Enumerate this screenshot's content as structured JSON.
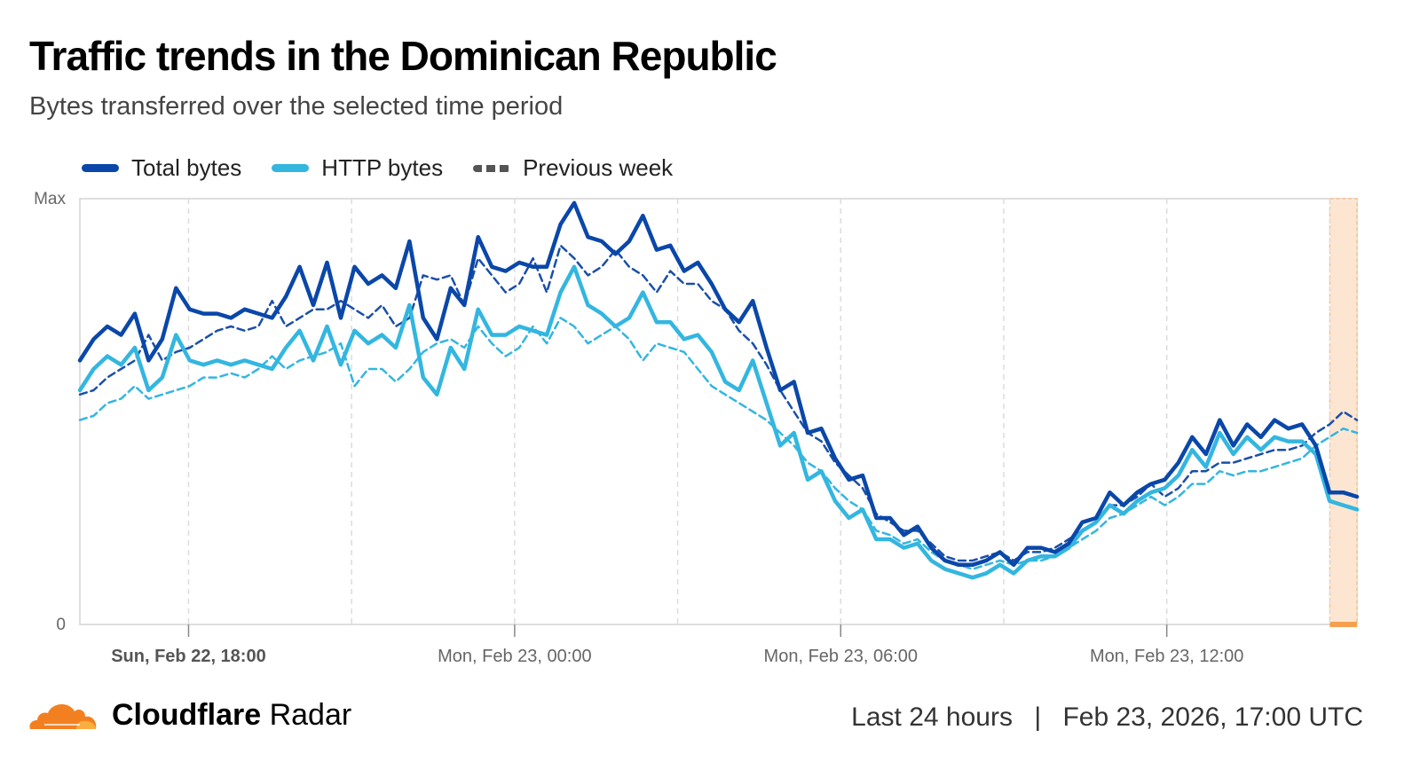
{
  "header": {
    "title": "Traffic trends in the Dominican Republic",
    "subtitle": "Bytes transferred over the selected time period"
  },
  "legend": [
    {
      "label": "Total bytes",
      "color": "#0a47a9"
    },
    {
      "label": "HTTP bytes",
      "color": "#33b6e0"
    },
    {
      "label": "Previous week",
      "color": "#555555"
    }
  ],
  "footer": {
    "brand_bold": "Cloudflare",
    "brand_rest": " Radar",
    "range": "Last 24 hours",
    "separator": "|",
    "timestamp": "Feb 23, 2026, 17:00 UTC"
  },
  "chart_data": {
    "type": "line",
    "title": "Traffic trends in the Dominican Republic",
    "ylabel": "",
    "ylim": [
      0,
      1
    ],
    "y_tick_labels": [
      "0",
      "Max"
    ],
    "x_tick_labels": [
      "Sun, Feb 22, 18:00",
      "Mon, Feb 23, 00:00",
      "Mon, Feb 23, 06:00",
      "Mon, Feb 23, 12:00"
    ],
    "x_tick_hours": [
      0,
      6,
      12,
      18
    ],
    "x_start_hours": -2,
    "x_end_hours": 21.5,
    "grid_hours": [
      0,
      3,
      6,
      9,
      12,
      15,
      18,
      21
    ],
    "highlight_region_hours": [
      21.0,
      21.5
    ],
    "series": [
      {
        "name": "Total bytes",
        "color": "#0a47a9",
        "style": "solid",
        "values": [
          0.62,
          0.67,
          0.7,
          0.68,
          0.73,
          0.62,
          0.67,
          0.79,
          0.74,
          0.73,
          0.73,
          0.72,
          0.74,
          0.73,
          0.72,
          0.77,
          0.84,
          0.75,
          0.85,
          0.72,
          0.84,
          0.8,
          0.82,
          0.79,
          0.9,
          0.72,
          0.67,
          0.79,
          0.75,
          0.91,
          0.84,
          0.83,
          0.85,
          0.84,
          0.84,
          0.94,
          0.99,
          0.91,
          0.9,
          0.87,
          0.9,
          0.96,
          0.88,
          0.89,
          0.83,
          0.85,
          0.8,
          0.74,
          0.71,
          0.76,
          0.65,
          0.55,
          0.57,
          0.45,
          0.46,
          0.39,
          0.34,
          0.35,
          0.25,
          0.25,
          0.21,
          0.23,
          0.18,
          0.15,
          0.14,
          0.14,
          0.15,
          0.17,
          0.14,
          0.18,
          0.18,
          0.17,
          0.19,
          0.24,
          0.25,
          0.31,
          0.28,
          0.31,
          0.33,
          0.34,
          0.38,
          0.44,
          0.4,
          0.48,
          0.42,
          0.47,
          0.44,
          0.48,
          0.46,
          0.47,
          0.42,
          0.31,
          0.31,
          0.3
        ]
      },
      {
        "name": "HTTP bytes",
        "color": "#33b6e0",
        "style": "solid",
        "values": [
          0.55,
          0.6,
          0.63,
          0.61,
          0.65,
          0.55,
          0.58,
          0.68,
          0.62,
          0.61,
          0.62,
          0.61,
          0.62,
          0.61,
          0.6,
          0.65,
          0.69,
          0.62,
          0.7,
          0.61,
          0.69,
          0.66,
          0.68,
          0.65,
          0.75,
          0.58,
          0.54,
          0.65,
          0.6,
          0.74,
          0.68,
          0.68,
          0.7,
          0.69,
          0.68,
          0.78,
          0.84,
          0.75,
          0.73,
          0.7,
          0.72,
          0.78,
          0.71,
          0.71,
          0.67,
          0.68,
          0.64,
          0.57,
          0.55,
          0.62,
          0.52,
          0.42,
          0.45,
          0.34,
          0.36,
          0.29,
          0.25,
          0.27,
          0.2,
          0.2,
          0.18,
          0.19,
          0.15,
          0.13,
          0.12,
          0.11,
          0.12,
          0.14,
          0.12,
          0.15,
          0.16,
          0.16,
          0.18,
          0.22,
          0.24,
          0.28,
          0.26,
          0.29,
          0.31,
          0.32,
          0.35,
          0.41,
          0.37,
          0.45,
          0.4,
          0.44,
          0.41,
          0.44,
          0.43,
          0.43,
          0.4,
          0.29,
          0.28,
          0.27
        ]
      },
      {
        "name": "Previous week total",
        "color": "#1a4fa8",
        "style": "dashed",
        "values": [
          0.54,
          0.55,
          0.58,
          0.6,
          0.62,
          0.68,
          0.62,
          0.64,
          0.65,
          0.67,
          0.69,
          0.7,
          0.69,
          0.7,
          0.76,
          0.7,
          0.72,
          0.74,
          0.74,
          0.76,
          0.74,
          0.72,
          0.75,
          0.7,
          0.72,
          0.82,
          0.81,
          0.82,
          0.75,
          0.86,
          0.82,
          0.78,
          0.8,
          0.86,
          0.78,
          0.89,
          0.86,
          0.82,
          0.84,
          0.88,
          0.84,
          0.82,
          0.78,
          0.83,
          0.8,
          0.8,
          0.76,
          0.74,
          0.69,
          0.66,
          0.61,
          0.55,
          0.5,
          0.45,
          0.43,
          0.38,
          0.35,
          0.32,
          0.26,
          0.24,
          0.22,
          0.22,
          0.19,
          0.16,
          0.15,
          0.15,
          0.16,
          0.17,
          0.15,
          0.17,
          0.17,
          0.18,
          0.2,
          0.22,
          0.24,
          0.28,
          0.28,
          0.3,
          0.33,
          0.3,
          0.32,
          0.36,
          0.36,
          0.38,
          0.38,
          0.39,
          0.4,
          0.41,
          0.41,
          0.42,
          0.45,
          0.47,
          0.5,
          0.48
        ]
      },
      {
        "name": "Previous week HTTP",
        "color": "#33b6e0",
        "style": "dashed",
        "values": [
          0.48,
          0.49,
          0.52,
          0.53,
          0.56,
          0.53,
          0.54,
          0.55,
          0.56,
          0.58,
          0.58,
          0.59,
          0.58,
          0.6,
          0.63,
          0.6,
          0.62,
          0.63,
          0.64,
          0.66,
          0.56,
          0.6,
          0.6,
          0.57,
          0.6,
          0.64,
          0.66,
          0.67,
          0.65,
          0.7,
          0.66,
          0.63,
          0.65,
          0.7,
          0.66,
          0.72,
          0.7,
          0.66,
          0.68,
          0.7,
          0.67,
          0.62,
          0.66,
          0.65,
          0.64,
          0.6,
          0.56,
          0.54,
          0.52,
          0.5,
          0.48,
          0.45,
          0.42,
          0.38,
          0.36,
          0.32,
          0.29,
          0.27,
          0.22,
          0.21,
          0.19,
          0.2,
          0.17,
          0.15,
          0.14,
          0.13,
          0.14,
          0.15,
          0.14,
          0.15,
          0.15,
          0.16,
          0.18,
          0.2,
          0.22,
          0.25,
          0.26,
          0.28,
          0.3,
          0.28,
          0.3,
          0.33,
          0.33,
          0.36,
          0.35,
          0.36,
          0.36,
          0.37,
          0.38,
          0.39,
          0.42,
          0.44,
          0.46,
          0.45
        ]
      }
    ]
  }
}
